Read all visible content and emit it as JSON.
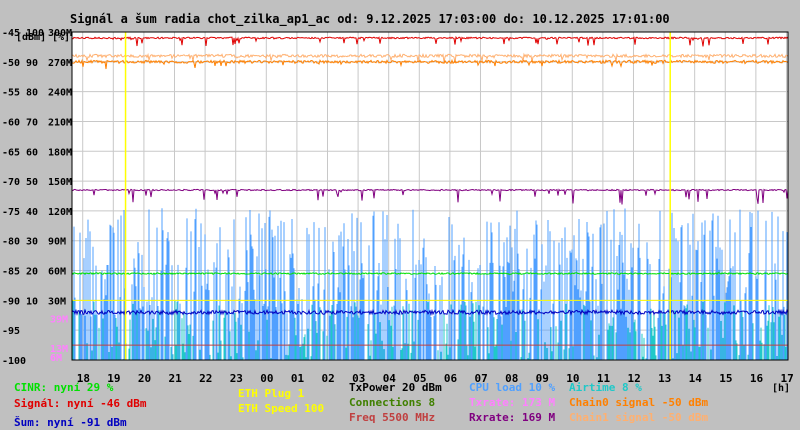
{
  "chart_data": {
    "type": "line",
    "title": "Signál a šum radia chot_zilka_ap1_ac od: 9.12.2025 17:03:00 do: 10.12.2025 17:01:00",
    "ylabel_left": "[dBm]",
    "ylabel_right": "[%]",
    "xlabel": "[h]",
    "x_ticks": [
      "18",
      "19",
      "20",
      "21",
      "22",
      "23",
      "00",
      "01",
      "02",
      "03",
      "04",
      "05",
      "06",
      "07",
      "08",
      "09",
      "10",
      "11",
      "12",
      "13",
      "14",
      "15",
      "16",
      "17"
    ],
    "y_dbm_ticks": [
      -45,
      -50,
      -55,
      -60,
      -65,
      -70,
      -75,
      -80,
      -85,
      -90,
      -95,
      -100
    ],
    "y_pct_ticks": [
      100,
      90,
      80,
      70,
      60,
      50,
      40,
      30,
      20,
      10
    ],
    "y_rate_ticks": [
      "300M",
      "270M",
      "240M",
      "210M",
      "180M",
      "150M",
      "120M",
      "90M",
      "60M",
      "30M"
    ],
    "extra_left_labels": [
      "39M",
      "13M",
      "6M"
    ],
    "ylim_dbm": [
      -100,
      -45
    ],
    "grid": true,
    "series": [
      {
        "name": "Signál",
        "approx_dbm": -46
      },
      {
        "name": "Chain0 signal",
        "approx_dbm": -50
      },
      {
        "name": "Šum",
        "approx_dbm": -91
      },
      {
        "name": "Rxrate",
        "approx_mbps": 169
      },
      {
        "name": "CINR",
        "approx_pct": 29
      },
      {
        "name": "CPU load",
        "approx_pct": 10
      },
      {
        "name": "Airtime",
        "approx_pct": 8
      }
    ],
    "annotations": [
      {
        "x": "19:30",
        "label": "ETH Plug"
      },
      {
        "x": "13:10",
        "label": "ETH Plug"
      }
    ]
  },
  "legend": {
    "col1": [
      "CINR: nyní 29 %",
      "Signál: nyní -46 dBm",
      "Šum: nyní -91 dBm"
    ],
    "col2": [
      "ETH Plug 1",
      "ETH Speed 100"
    ],
    "col3": [
      "TxPower 20 dBm",
      "Connections 8",
      "Freq 5500 MHz"
    ],
    "col4": [
      "CPU load 10 %",
      "Txrate: 173 M",
      "Rxrate: 169 M"
    ],
    "col5": [
      "Airtime 8 %",
      "Chain0 signal -50 dBm",
      "Chain1 signal -50 dBm"
    ]
  },
  "colors": {
    "background": "#c0c0c0",
    "plot_bg": "#ffffff",
    "grid": "#c8c8c8",
    "signal": "#e00000",
    "chain0": "#ff8000",
    "chain1": "#ffb070",
    "noise": "#0000c0",
    "rxrate": "#800080",
    "cinr": "#00e000",
    "cpu": "#50a0ff",
    "airtime": "#20c8c8",
    "eth": "#ffff00",
    "txrate": "#ff80ff",
    "freq": "#c04040",
    "connections": "#408000",
    "txpower": "#000000"
  }
}
